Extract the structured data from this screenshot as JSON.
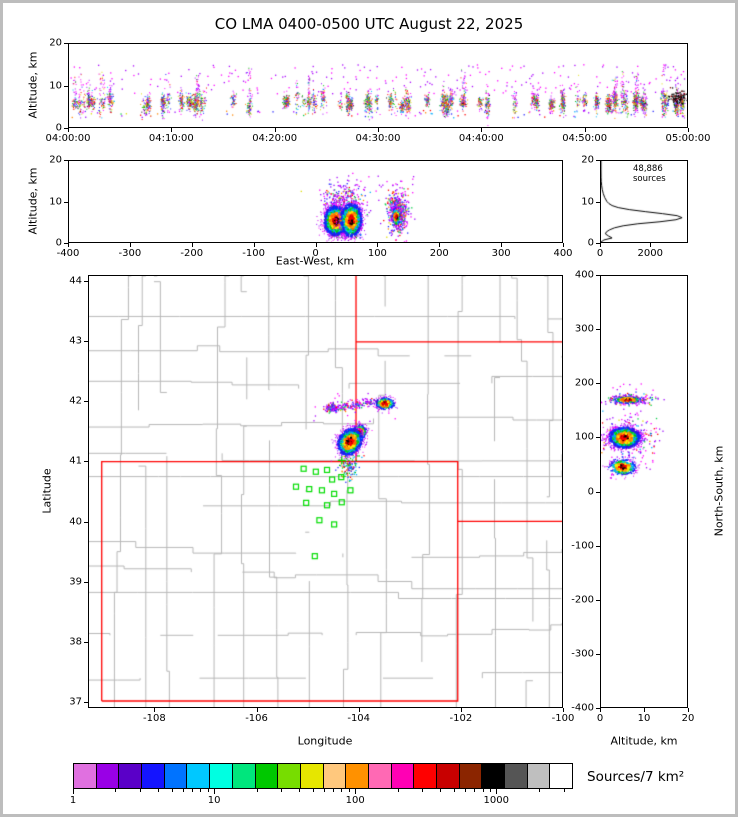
{
  "title": "CO LMA 0400-0500 UTC August 22, 2025",
  "colorbar": {
    "label": "Sources/7 km²",
    "min": 1,
    "max": 3500,
    "tick_labels": [
      {
        "v": 1,
        "l": "1"
      },
      {
        "v": 10,
        "l": "10"
      },
      {
        "v": 100,
        "l": "100"
      },
      {
        "v": 1000,
        "l": "1000"
      }
    ],
    "colors": [
      "#e070e0",
      "#9900e6",
      "#5a00c8",
      "#1414ff",
      "#0073ff",
      "#00c8ff",
      "#00ffe1",
      "#00e67d",
      "#00c800",
      "#77dd00",
      "#e6e600",
      "#ffc87d",
      "#ff9100",
      "#ff69b4",
      "#ff00b4",
      "#ff0000",
      "#c80000",
      "#8b2500",
      "#000000",
      "#555555",
      "#bfbfbf",
      "#ffffff"
    ]
  },
  "palettes": {
    "density_core": [
      [
        "#ff0000",
        0.45
      ],
      [
        "#cc0000",
        0.3
      ],
      [
        "#000000",
        0.25
      ]
    ],
    "density_ring1": [
      [
        "#ff6600",
        0.3
      ],
      [
        "#ff9900",
        0.35
      ],
      [
        "#ffee00",
        0.35
      ]
    ],
    "density_ring2": [
      [
        "#00cc00",
        0.4
      ],
      [
        "#00e6b4",
        0.25
      ],
      [
        "#00aaff",
        0.35
      ]
    ],
    "density_ring3": [
      [
        "#0033ff",
        0.6
      ],
      [
        "#3311dd",
        0.4
      ]
    ],
    "density_fringe": [
      [
        "#9900ff",
        0.4
      ],
      [
        "#cc00ee",
        0.3
      ],
      [
        "#ff00ff",
        0.3
      ]
    ],
    "speckle": [
      [
        "#9900ff",
        0.32
      ],
      [
        "#ff00ff",
        0.2
      ],
      [
        "#2222ff",
        0.14
      ],
      [
        "#00aaff",
        0.09
      ],
      [
        "#00cc44",
        0.09
      ],
      [
        "#ff0000",
        0.07
      ],
      [
        "#ff8800",
        0.05
      ],
      [
        "#dddd00",
        0.04
      ]
    ],
    "rainbow": [
      [
        "#ff0000",
        0.16
      ],
      [
        "#ff8800",
        0.12
      ],
      [
        "#dddd00",
        0.1
      ],
      [
        "#00bb00",
        0.17
      ],
      [
        "#00bbff",
        0.12
      ],
      [
        "#2222ff",
        0.14
      ],
      [
        "#9900ff",
        0.1
      ],
      [
        "#ff00ff",
        0.06
      ],
      [
        "#000000",
        0.03
      ]
    ],
    "magenta": [
      [
        "#ff00ff",
        0.55
      ],
      [
        "#aa00ff",
        0.45
      ]
    ],
    "dark": [
      [
        "#000000",
        0.6
      ],
      [
        "#333333",
        0.25
      ],
      [
        "#8b0000",
        0.15
      ]
    ],
    "mixed2": [
      [
        "#00cc00",
        0.3
      ],
      [
        "#00aaff",
        0.2
      ],
      [
        "#2222ff",
        0.2
      ],
      [
        "#ff0000",
        0.12
      ],
      [
        "#ff8800",
        0.08
      ],
      [
        "#9900ff",
        0.1
      ]
    ]
  },
  "chart_data": [
    {
      "id": "time_height",
      "type": "scatter",
      "ylabel": "Altitude, km",
      "x_range": [
        0,
        60
      ],
      "y_range": [
        0,
        20
      ],
      "x_ticks": [
        {
          "v": 0,
          "l": "04:00:00"
        },
        {
          "v": 10,
          "l": "04:10:00"
        },
        {
          "v": 20,
          "l": "04:20:00"
        },
        {
          "v": 30,
          "l": "04:30:00"
        },
        {
          "v": 40,
          "l": "04:40:00"
        },
        {
          "v": 50,
          "l": "04:50:00"
        },
        {
          "v": 60,
          "l": "05:00:00"
        }
      ],
      "y_ticks": [
        {
          "v": 0,
          "l": "0"
        },
        {
          "v": 10,
          "l": "10"
        },
        {
          "v": 20,
          "l": "20"
        }
      ],
      "bursts": {
        "count": 88,
        "n_min": 12,
        "n_max": 95,
        "tall_frac": 0.33
      },
      "clusters": [
        {
          "style": "box",
          "x0": 0,
          "x1": 60,
          "y0": 8,
          "y1": 15,
          "n": 220,
          "palette": "magenta"
        },
        {
          "style": "box",
          "x0": 0,
          "x1": 60,
          "y0": 2.2,
          "y1": 4,
          "n": 90,
          "palette": "speckle"
        },
        {
          "style": "gauss",
          "cx": 59.2,
          "cy": 7,
          "sx": 0.5,
          "sy": 0.9,
          "n": 110,
          "palette": "dark"
        }
      ]
    },
    {
      "id": "ew_altitude",
      "type": "scatter",
      "xlabel": "East-West, km",
      "ylabel": "Altitude, km",
      "x_range": [
        -400,
        400
      ],
      "y_range": [
        0,
        20
      ],
      "x_ticks": [
        {
          "v": -400,
          "l": "-400"
        },
        {
          "v": -300,
          "l": "-300"
        },
        {
          "v": -200,
          "l": "-200"
        },
        {
          "v": -100,
          "l": "-100"
        },
        {
          "v": 0,
          "l": "0"
        },
        {
          "v": 100,
          "l": "100"
        },
        {
          "v": 200,
          "l": "200"
        },
        {
          "v": 300,
          "l": "300"
        },
        {
          "v": 400,
          "l": "400"
        }
      ],
      "y_ticks": [
        {
          "v": 0,
          "l": "0"
        },
        {
          "v": 10,
          "l": "10"
        },
        {
          "v": 20,
          "l": "20"
        }
      ],
      "clusters": [
        {
          "style": "gauss",
          "cx": 45,
          "cy": 10.3,
          "sx": 17,
          "sy": 1.9,
          "n": 240,
          "palette": "speckle"
        },
        {
          "style": "box",
          "x0": 15,
          "x1": 160,
          "y0": 9,
          "y1": 16.5,
          "n": 60,
          "palette": "magenta"
        },
        {
          "style": "box",
          "x0": 25,
          "x1": 75,
          "y0": 1,
          "y1": 3,
          "n": 50,
          "palette": "mixed2"
        },
        {
          "style": "gauss",
          "cx": 133,
          "cy": 7.2,
          "sx": 8,
          "sy": 2.4,
          "n": 620,
          "palette": "speckle"
        },
        {
          "style": "density",
          "cx": 131,
          "cy": 6.2,
          "sx": 3,
          "sy": 1.1,
          "n": 130
        },
        {
          "style": "density",
          "cx": 33,
          "cy": 5.2,
          "sx": 9,
          "sy": 1.7,
          "n": 2300
        },
        {
          "style": "density",
          "cx": 58,
          "cy": 5.4,
          "sx": 8,
          "sy": 1.9,
          "n": 2000
        }
      ]
    },
    {
      "id": "altitude_histogram",
      "type": "line",
      "annotation": "48,886 sources",
      "x_range": [
        0,
        3500
      ],
      "y_range": [
        0,
        20
      ],
      "x_ticks": [
        {
          "v": 0,
          "l": "0"
        },
        {
          "v": 2000,
          "l": "2000"
        }
      ],
      "y_ticks": [
        {
          "v": 0,
          "l": "0"
        },
        {
          "v": 10,
          "l": "10"
        },
        {
          "v": 20,
          "l": "20"
        }
      ],
      "profile": [
        [
          0,
          0
        ],
        [
          0.5,
          120
        ],
        [
          1,
          450
        ],
        [
          1.5,
          300
        ],
        [
          2,
          180
        ],
        [
          2.5,
          220
        ],
        [
          3,
          350
        ],
        [
          3.5,
          550
        ],
        [
          4,
          900
        ],
        [
          4.5,
          1500
        ],
        [
          5,
          2400
        ],
        [
          5.5,
          3050
        ],
        [
          6,
          3300
        ],
        [
          6.5,
          3100
        ],
        [
          7,
          2500
        ],
        [
          7.5,
          1800
        ],
        [
          8,
          1150
        ],
        [
          8.5,
          700
        ],
        [
          9,
          450
        ],
        [
          9.5,
          320
        ],
        [
          10,
          240
        ],
        [
          11,
          150
        ],
        [
          12,
          90
        ],
        [
          13,
          50
        ],
        [
          14,
          25
        ],
        [
          15,
          10
        ],
        [
          16,
          4
        ],
        [
          18,
          1
        ],
        [
          20,
          0
        ]
      ]
    },
    {
      "id": "map",
      "type": "scatter",
      "xlabel": "Longitude",
      "ylabel": "Latitude",
      "x_range": [
        -109.3,
        -100
      ],
      "y_range": [
        36.9,
        44.1
      ],
      "x_ticks": [
        {
          "v": -108,
          "l": "-108"
        },
        {
          "v": -106,
          "l": "-106"
        },
        {
          "v": -104,
          "l": "-104"
        },
        {
          "v": -102,
          "l": "-102"
        },
        {
          "v": -100,
          "l": "-100"
        }
      ],
      "y_ticks": [
        {
          "v": 37,
          "l": "37"
        },
        {
          "v": 38,
          "l": "38"
        },
        {
          "v": 39,
          "l": "39"
        },
        {
          "v": 40,
          "l": "40"
        },
        {
          "v": 41,
          "l": "41"
        },
        {
          "v": 42,
          "l": "42"
        },
        {
          "v": 43,
          "l": "43"
        },
        {
          "v": 44,
          "l": "44"
        }
      ],
      "state_border_color": "#ff0000",
      "county_color": "#b7b7b7",
      "station_color": "#00dd00",
      "state_borders": [
        [
          [
            -109.05,
            37.0
          ],
          [
            -109.05,
            41.0
          ],
          [
            -102.05,
            41.0
          ],
          [
            -102.05,
            37.0
          ],
          [
            -109.05,
            37.0
          ]
        ],
        [
          [
            -104.05,
            41.0
          ],
          [
            -104.05,
            44.1
          ]
        ],
        [
          [
            -104.05,
            43.0
          ],
          [
            -100.0,
            43.0
          ]
        ],
        [
          [
            -102.05,
            40.0
          ],
          [
            -100.0,
            40.0
          ]
        ]
      ],
      "stations": [
        [
          -105.08,
          40.88
        ],
        [
          -104.84,
          40.83
        ],
        [
          -104.62,
          40.86
        ],
        [
          -104.52,
          40.7
        ],
        [
          -104.34,
          40.74
        ],
        [
          -105.23,
          40.58
        ],
        [
          -104.97,
          40.54
        ],
        [
          -104.72,
          40.52
        ],
        [
          -104.48,
          40.46
        ],
        [
          -104.16,
          40.52
        ],
        [
          -105.03,
          40.31
        ],
        [
          -104.62,
          40.27
        ],
        [
          -104.33,
          40.32
        ],
        [
          -104.77,
          40.02
        ],
        [
          -104.48,
          39.95
        ],
        [
          -104.86,
          39.42
        ]
      ],
      "center_marker": [
        -104.33,
        41.02
      ],
      "clusters": [
        {
          "style": "box",
          "x0": -104.9,
          "x1": -103.2,
          "y0": 41.5,
          "y1": 42.15,
          "n": 22,
          "palette": "magenta"
        },
        {
          "style": "gauss",
          "cx": -104.18,
          "cy": 40.92,
          "sx": 0.09,
          "sy": 0.1,
          "n": 120,
          "palette": "mixed2"
        },
        {
          "style": "gauss",
          "cx": -104.52,
          "cy": 41.9,
          "sx": 0.06,
          "sy": 0.04,
          "n": 110,
          "palette": "speckle"
        },
        {
          "style": "arc",
          "x0": -104.55,
          "y0": 41.88,
          "x1": -103.7,
          "y1": 42.0,
          "sx": 0.06,
          "sy": 0.035,
          "n": 200,
          "palette": "speckle"
        },
        {
          "style": "density",
          "cx": -103.48,
          "cy": 41.97,
          "sx": 0.09,
          "sy": 0.045,
          "n": 420
        },
        {
          "style": "density",
          "cx": -103.99,
          "cy": 41.5,
          "sx": 0.07,
          "sy": 0.055,
          "n": 450
        },
        {
          "style": "density",
          "cx": -104.17,
          "cy": 41.33,
          "sx": 0.12,
          "sy": 0.095,
          "rot": 35,
          "n": 1800
        }
      ]
    },
    {
      "id": "ns_altitude",
      "type": "scatter",
      "xlabel": "Altitude, km",
      "ylabel": "North-South, km",
      "x_range": [
        0,
        20
      ],
      "y_range": [
        -400,
        400
      ],
      "x_ticks": [
        {
          "v": 0,
          "l": "0"
        },
        {
          "v": 10,
          "l": "10"
        },
        {
          "v": 20,
          "l": "20"
        }
      ],
      "y_ticks": [
        {
          "v": 400,
          "l": "400"
        },
        {
          "v": 300,
          "l": "300"
        },
        {
          "v": 200,
          "l": "200"
        },
        {
          "v": 100,
          "l": "100"
        },
        {
          "v": 0,
          "l": "0"
        },
        {
          "v": -100,
          "l": "-100"
        },
        {
          "v": -200,
          "l": "-200"
        },
        {
          "v": -300,
          "l": "-300"
        },
        {
          "v": -400,
          "l": "-400"
        }
      ],
      "clusters": [
        {
          "style": "box",
          "x0": 2,
          "x1": 13,
          "y0": 25,
          "y1": 200,
          "n": 70,
          "palette": "magenta"
        },
        {
          "style": "gauss",
          "cx": 6,
          "cy": 100,
          "sx": 3.4,
          "sy": 17,
          "n": 220,
          "palette": "speckle"
        },
        {
          "style": "gauss",
          "cx": 6.5,
          "cy": 170,
          "sx": 2.4,
          "sy": 5,
          "n": 300,
          "palette": "speckle"
        },
        {
          "style": "density",
          "cx": 6.2,
          "cy": 170,
          "sx": 1.6,
          "sy": 3,
          "n": 140
        },
        {
          "style": "density",
          "cx": 5.1,
          "cy": 45,
          "sx": 1.5,
          "sy": 7,
          "n": 420
        },
        {
          "style": "density",
          "cx": 5.5,
          "cy": 100,
          "sx": 1.7,
          "sy": 9,
          "n": 2200
        }
      ]
    }
  ]
}
